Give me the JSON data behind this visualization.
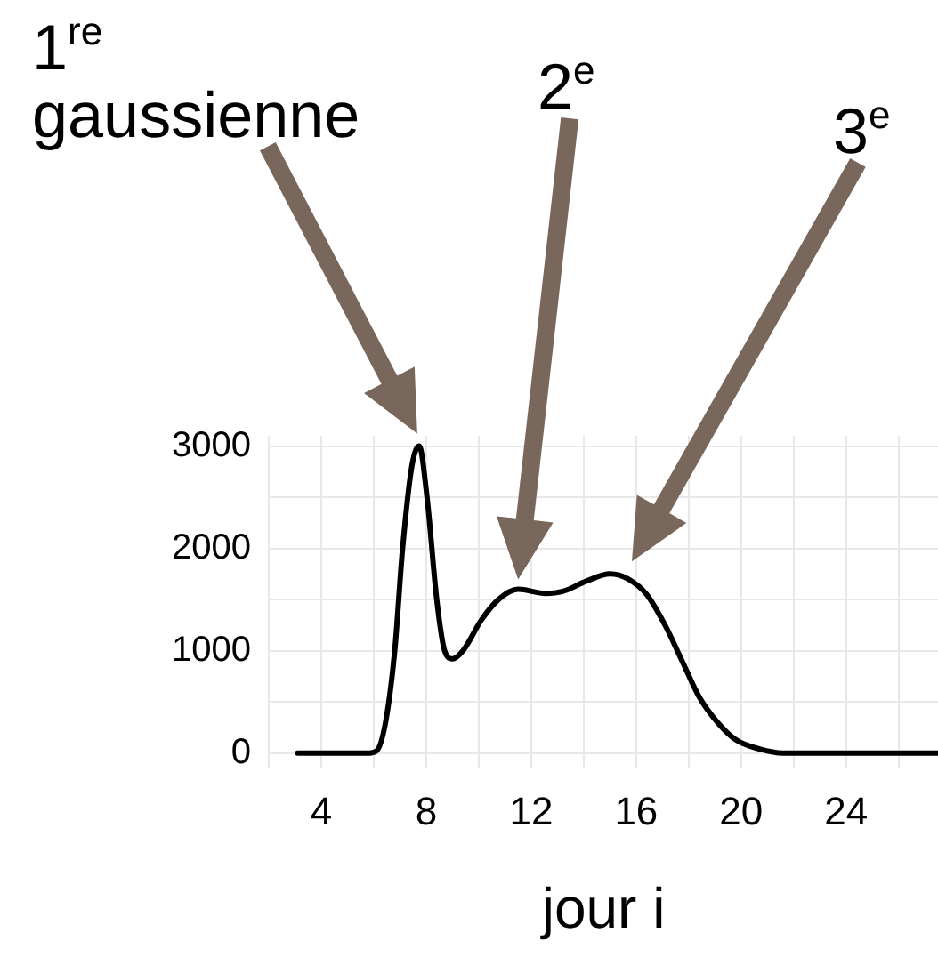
{
  "chart_data": {
    "type": "line",
    "xlabel": "jour i",
    "x": [
      3.1,
      5.76,
      6.1,
      6.45,
      6.8,
      7.1,
      7.45,
      7.73,
      8.03,
      8.4,
      8.7,
      9.0,
      9.4,
      10.1,
      10.75,
      11.5,
      12.55,
      13.2,
      14.1,
      15.0,
      15.7,
      16.4,
      17.1,
      17.75,
      18.4,
      19.1,
      19.8,
      20.7,
      21.6,
      22.7,
      27.5
    ],
    "series": [
      {
        "color": "#000000",
        "values": [
          0,
          0,
          20,
          300,
          1000,
          2000,
          2800,
          3000,
          2500,
          1500,
          1000,
          920,
          1000,
          1300,
          1500,
          1600,
          1560,
          1580,
          1680,
          1750,
          1700,
          1550,
          1250,
          900,
          550,
          300,
          130,
          40,
          0,
          0,
          0
        ]
      }
    ],
    "xlim": [
      2,
      27.5
    ],
    "ylim": [
      -150,
      3100
    ],
    "xticks": [
      {
        "value": 2,
        "label": null
      },
      4,
      {
        "value": 6,
        "label": null
      },
      8,
      {
        "value": 10,
        "label": null
      },
      12,
      {
        "value": 14,
        "label": null
      },
      16,
      {
        "value": 18,
        "label": null
      },
      20,
      {
        "value": 22,
        "label": null
      },
      24,
      {
        "value": 26,
        "label": null
      }
    ],
    "yticks": [
      0,
      {
        "value": 500,
        "label": null
      },
      1000,
      {
        "value": 1500,
        "label": null
      },
      2000,
      {
        "value": 2500,
        "label": null
      },
      3000
    ],
    "grid": true,
    "marker": "none",
    "line_style": "solid",
    "legend": false,
    "annotations": [
      "1$^{re}$ gaussienne",
      "2$^{e}$",
      "3$^{e}$"
    ]
  }
}
